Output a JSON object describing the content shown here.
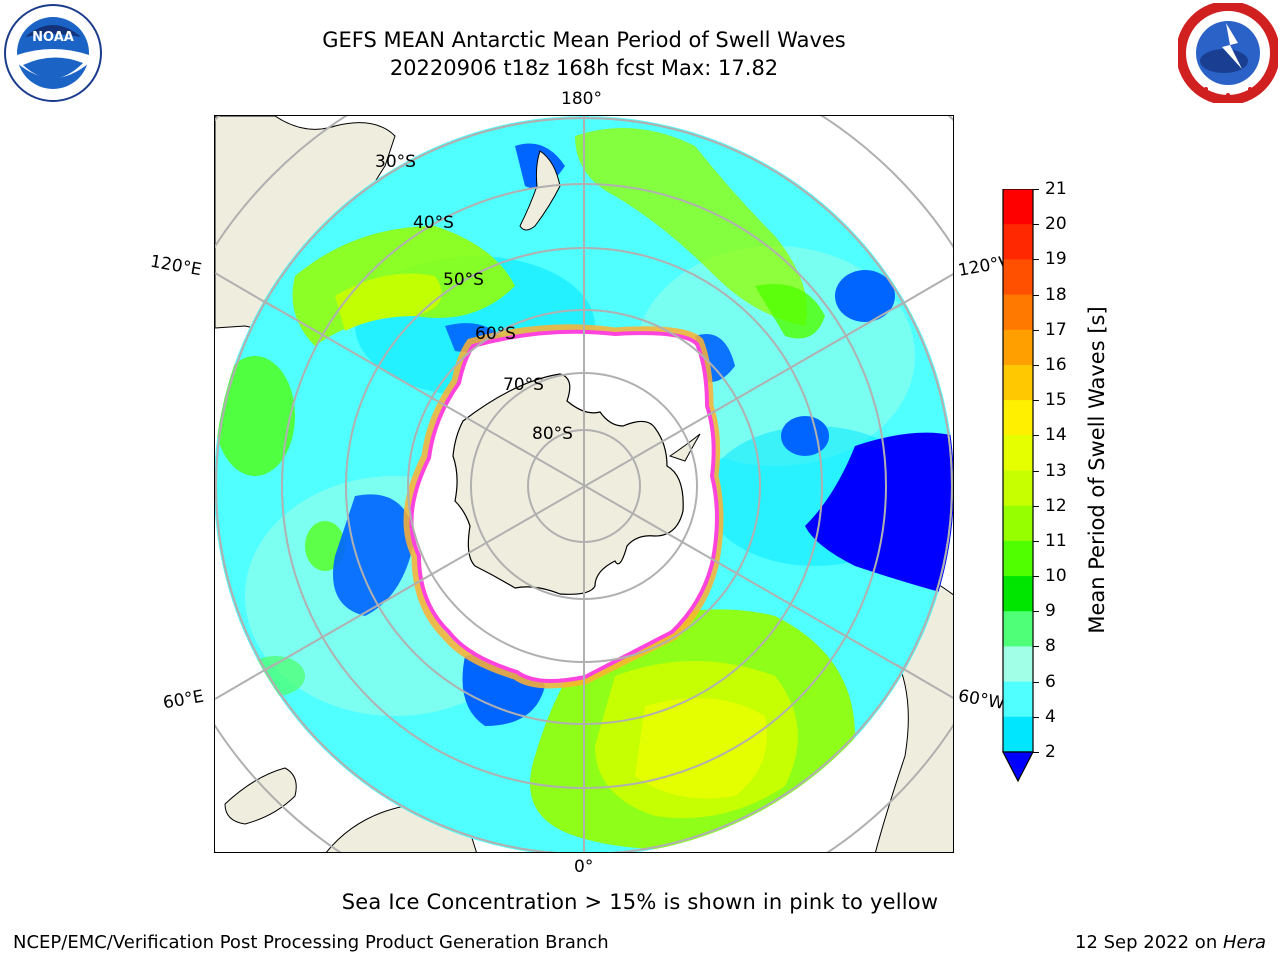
{
  "title": {
    "line1": "GEFS MEAN Antarctic Mean Period of Swell Waves",
    "line2": "20220906 t18z 168h fcst   Max: 17.82"
  },
  "logos": {
    "left": {
      "text": "NOAA",
      "ring": "NATIONAL OCEANIC AND ATMOSPHERIC ADMINISTRATION · U.S. DEPARTMENT OF COMMERCE"
    },
    "right": {
      "ring": "NATIONAL WEATHER SERVICE"
    }
  },
  "map": {
    "longitude_labels": {
      "top": "180°",
      "bottom": "0°",
      "left_upper": "120°E",
      "left_lower": "60°E",
      "right_upper": "120°W",
      "right_lower": "60°W"
    },
    "latitude_labels": [
      "30°S",
      "40°S",
      "50°S",
      "60°S",
      "70°S",
      "80°S"
    ],
    "colors": {
      "land": "#efedde",
      "ice_edge": "#ff44dd",
      "ice_edge_outer": "#ffb030",
      "grid": "#b0b0b0"
    }
  },
  "colorbar": {
    "label": "Mean Period of Swell Waves [s]",
    "ticks": [
      "21",
      "20",
      "19",
      "18",
      "17",
      "16",
      "15",
      "14",
      "13",
      "12",
      "11",
      "10",
      "9",
      "8",
      "6",
      "4",
      "2"
    ],
    "colors": [
      "#ff0000",
      "#ff2800",
      "#ff5000",
      "#ff7800",
      "#ffa000",
      "#ffc800",
      "#fff000",
      "#e6ff00",
      "#c8ff00",
      "#96ff00",
      "#50ff00",
      "#00e600",
      "#50ff78",
      "#a0ffe6",
      "#50ffff",
      "#00e6ff",
      "#0064ff"
    ],
    "extend_color": "#0000ff"
  },
  "caption": "Sea Ice Concentration > 15% is shown in pink to yellow",
  "footer": {
    "left": "NCEP/EMC/Verification Post Processing Product Generation Branch",
    "right_prefix": "12 Sep 2022 on ",
    "right_machine": "Hera"
  }
}
